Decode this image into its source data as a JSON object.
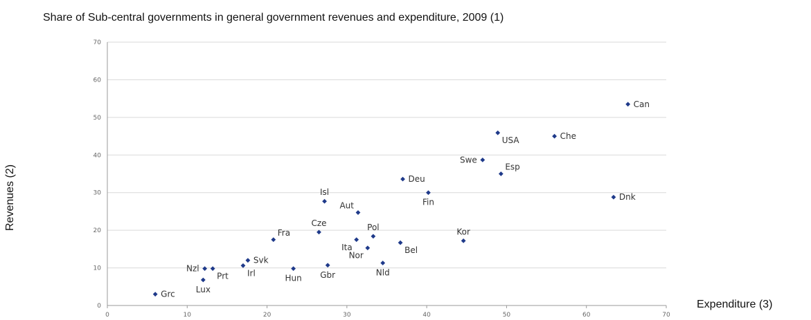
{
  "chart_data": {
    "type": "scatter",
    "title": "Share of Sub-central governments in general government revenues and expenditure, 2009 (1)",
    "xlabel": "Expenditure (3)",
    "ylabel": "Revenues (2)",
    "xlim": [
      0,
      70
    ],
    "ylim": [
      0,
      70
    ],
    "xticks": [
      0,
      10,
      20,
      30,
      40,
      50,
      60,
      70
    ],
    "yticks": [
      0,
      10,
      20,
      30,
      40,
      50,
      60,
      70
    ],
    "grid": "horizontal",
    "marker_color": "#1f3a8a",
    "points": [
      {
        "label": "Grc",
        "x": 6.0,
        "y": 3.0,
        "pos": "right"
      },
      {
        "label": "Lux",
        "x": 12.0,
        "y": 6.8,
        "pos": "below"
      },
      {
        "label": "Nzl",
        "x": 12.2,
        "y": 9.8,
        "pos": "left"
      },
      {
        "label": "Prt",
        "x": 13.2,
        "y": 9.8,
        "pos": "below-right"
      },
      {
        "label": "Irl",
        "x": 17.0,
        "y": 10.6,
        "pos": "below-right"
      },
      {
        "label": "Svk",
        "x": 17.6,
        "y": 12.0,
        "pos": "right"
      },
      {
        "label": "Fra",
        "x": 20.8,
        "y": 17.5,
        "pos": "above-right"
      },
      {
        "label": "Hun",
        "x": 23.3,
        "y": 9.8,
        "pos": "below"
      },
      {
        "label": "Cze",
        "x": 26.5,
        "y": 19.5,
        "pos": "above"
      },
      {
        "label": "Isl",
        "x": 27.2,
        "y": 27.7,
        "pos": "above"
      },
      {
        "label": "Gbr",
        "x": 27.6,
        "y": 10.7,
        "pos": "below"
      },
      {
        "label": "Ita",
        "x": 31.2,
        "y": 17.5,
        "pos": "below-left"
      },
      {
        "label": "Aut",
        "x": 31.4,
        "y": 24.7,
        "pos": "above-left"
      },
      {
        "label": "Nor",
        "x": 32.6,
        "y": 15.3,
        "pos": "below-left"
      },
      {
        "label": "Pol",
        "x": 33.3,
        "y": 18.4,
        "pos": "above"
      },
      {
        "label": "Nld",
        "x": 34.5,
        "y": 11.3,
        "pos": "below"
      },
      {
        "label": "Bel",
        "x": 36.7,
        "y": 16.7,
        "pos": "below-right"
      },
      {
        "label": "Deu",
        "x": 37.0,
        "y": 33.6,
        "pos": "right"
      },
      {
        "label": "Fin",
        "x": 40.2,
        "y": 30.0,
        "pos": "below"
      },
      {
        "label": "Kor",
        "x": 44.6,
        "y": 17.2,
        "pos": "above"
      },
      {
        "label": "Swe",
        "x": 47.0,
        "y": 38.7,
        "pos": "left"
      },
      {
        "label": "USA",
        "x": 48.9,
        "y": 45.9,
        "pos": "below-right"
      },
      {
        "label": "Esp",
        "x": 49.3,
        "y": 35.0,
        "pos": "above-right"
      },
      {
        "label": "Che",
        "x": 56.0,
        "y": 45.0,
        "pos": "right"
      },
      {
        "label": "Dnk",
        "x": 63.4,
        "y": 28.8,
        "pos": "right"
      },
      {
        "label": "Can",
        "x": 65.2,
        "y": 53.5,
        "pos": "right"
      }
    ]
  }
}
